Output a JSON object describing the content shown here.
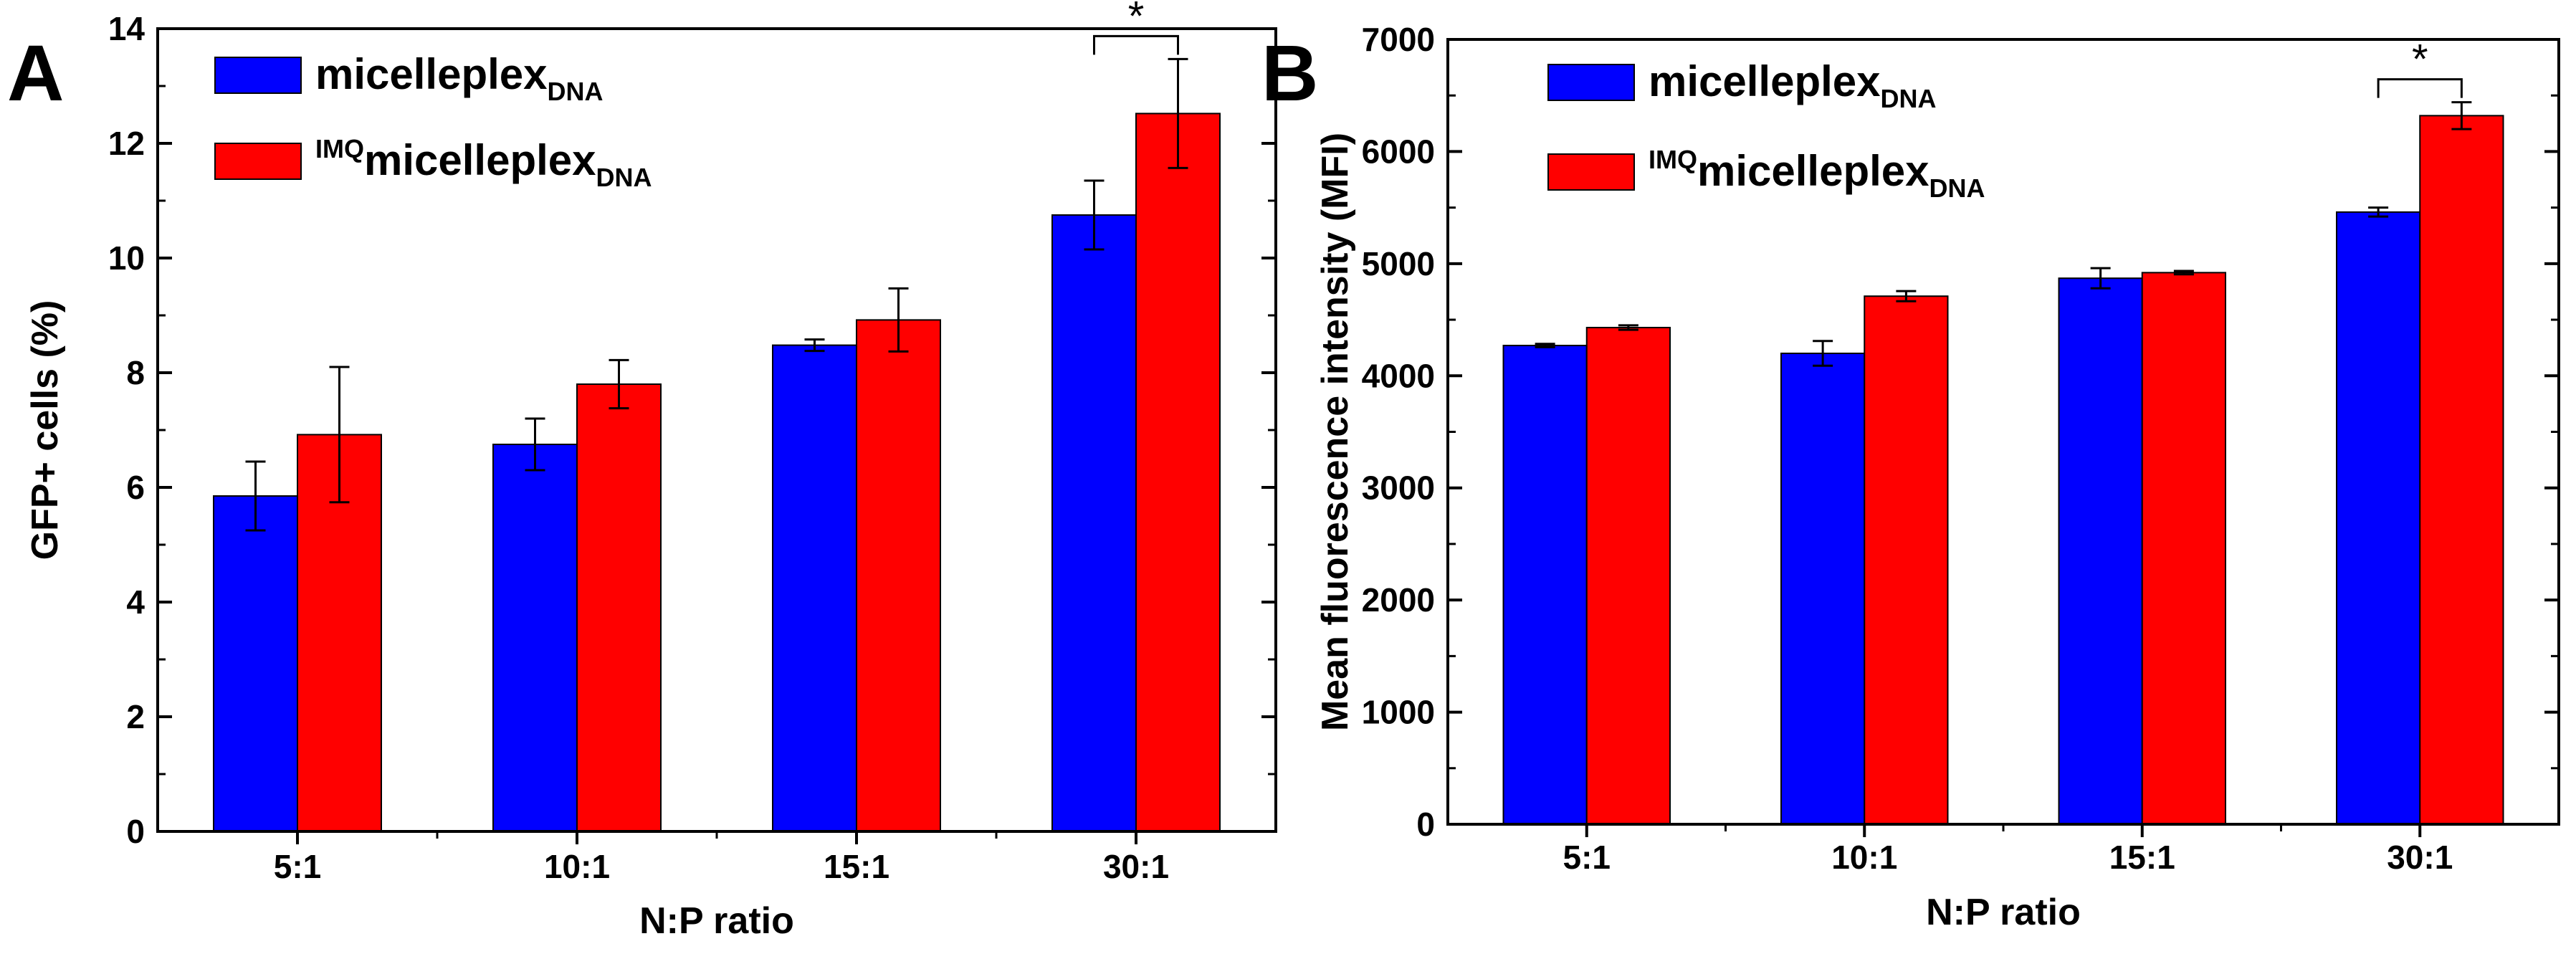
{
  "chart_data": [
    {
      "type": "bar",
      "panel_label": "A",
      "categories": [
        "5:1",
        "10:1",
        "15:1",
        "30:1"
      ],
      "xlabel": "N:P ratio",
      "ylabel": "GFP+ cells (%)",
      "ylim": [
        0,
        14
      ],
      "yticks": [
        0,
        2,
        4,
        6,
        8,
        10,
        12,
        14
      ],
      "grid": false,
      "legend_position": "top-left",
      "series": [
        {
          "legend": {
            "main": "micelleplex",
            "pre": "",
            "sub": "DNA"
          },
          "color": "#0000ff",
          "values": [
            5.85,
            6.75,
            8.48,
            10.75
          ],
          "errors": [
            0.6,
            0.45,
            0.1,
            0.6
          ]
        },
        {
          "legend": {
            "main": "micelleplex",
            "pre": "IMQ",
            "sub": "DNA"
          },
          "color": "#ff0000",
          "values": [
            6.92,
            7.8,
            8.92,
            12.52
          ],
          "errors": [
            1.18,
            0.42,
            0.55,
            0.95
          ]
        }
      ],
      "significance": {
        "category": "30:1",
        "label": "*"
      }
    },
    {
      "type": "bar",
      "panel_label": "B",
      "categories": [
        "5:1",
        "10:1",
        "15:1",
        "30:1"
      ],
      "xlabel": "N:P ratio",
      "ylabel": "Mean fluorescence intensity (MFI)",
      "ylim": [
        0,
        7000
      ],
      "yticks": [
        0,
        1000,
        2000,
        3000,
        4000,
        5000,
        6000,
        7000
      ],
      "grid": false,
      "legend_position": "top-left",
      "series": [
        {
          "legend": {
            "main": "micelleplex",
            "pre": "",
            "sub": "DNA"
          },
          "color": "#0000ff",
          "values": [
            4270,
            4200,
            4870,
            5460
          ],
          "errors": [
            15,
            110,
            90,
            40
          ]
        },
        {
          "legend": {
            "main": "micelleplex",
            "pre": "IMQ",
            "sub": "DNA"
          },
          "color": "#ff0000",
          "values": [
            4430,
            4710,
            4920,
            6320
          ],
          "errors": [
            20,
            45,
            15,
            120
          ]
        }
      ],
      "significance": {
        "category": "30:1",
        "label": "*"
      }
    }
  ]
}
